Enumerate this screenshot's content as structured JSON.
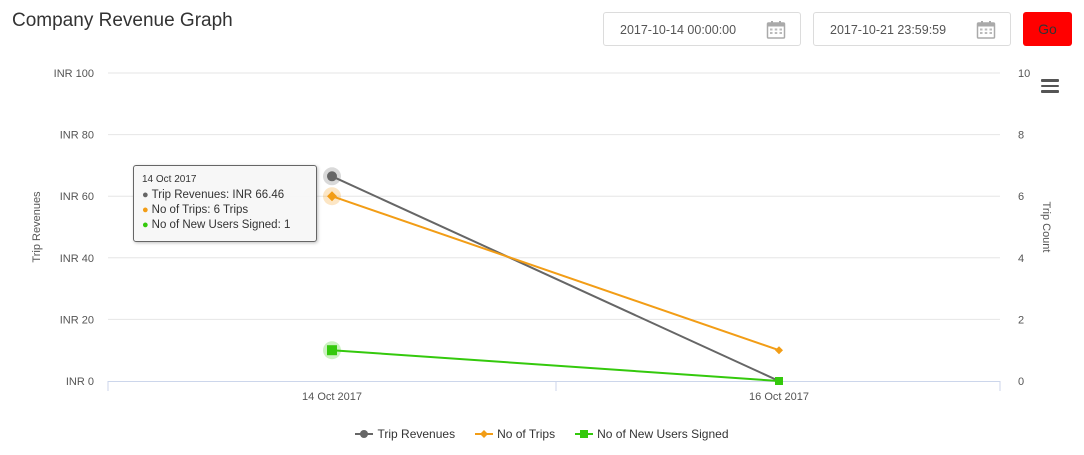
{
  "header": {
    "title": "Company Revenue Graph"
  },
  "filters": {
    "start_date": "2017-10-14 00:00:00",
    "end_date": "2017-10-21 23:59:59",
    "go_label": "Go"
  },
  "icons": {
    "calendar": "calendar-icon",
    "menu": "hamburger-menu-icon"
  },
  "tooltip": {
    "date": "14 Oct 2017",
    "rows": [
      {
        "text": "Trip Revenues: INR 66.46",
        "color": "#666666"
      },
      {
        "text": "No of Trips: 6 Trips",
        "color": "#f29d16"
      },
      {
        "text": "No of New Users Signed: 1",
        "color": "#34c90c"
      }
    ]
  },
  "chart_data": {
    "type": "line",
    "x": [
      "14 Oct 2017",
      "16 Oct 2017"
    ],
    "y_left": {
      "label": "Trip Revenues",
      "range": [
        0,
        100
      ],
      "ticks": [
        "INR 0",
        "INR 20",
        "INR 40",
        "INR 60",
        "INR 80",
        "INR 100"
      ]
    },
    "y_right": {
      "label": "Trip Count",
      "range": [
        0,
        10
      ],
      "ticks": [
        "0",
        "2",
        "4",
        "6",
        "8",
        "10"
      ]
    },
    "series": [
      {
        "name": "Trip Revenues",
        "axis": "left",
        "values": [
          66.46,
          0
        ],
        "color": "#666666",
        "marker": "circle"
      },
      {
        "name": "No of Trips",
        "axis": "right",
        "values": [
          6,
          1
        ],
        "color": "#f29d16",
        "marker": "diamond"
      },
      {
        "name": "No of New Users Signed",
        "axis": "right",
        "values": [
          1,
          0
        ],
        "color": "#34c90c",
        "marker": "square"
      }
    ],
    "grid": true,
    "legend": "bottom-center"
  }
}
